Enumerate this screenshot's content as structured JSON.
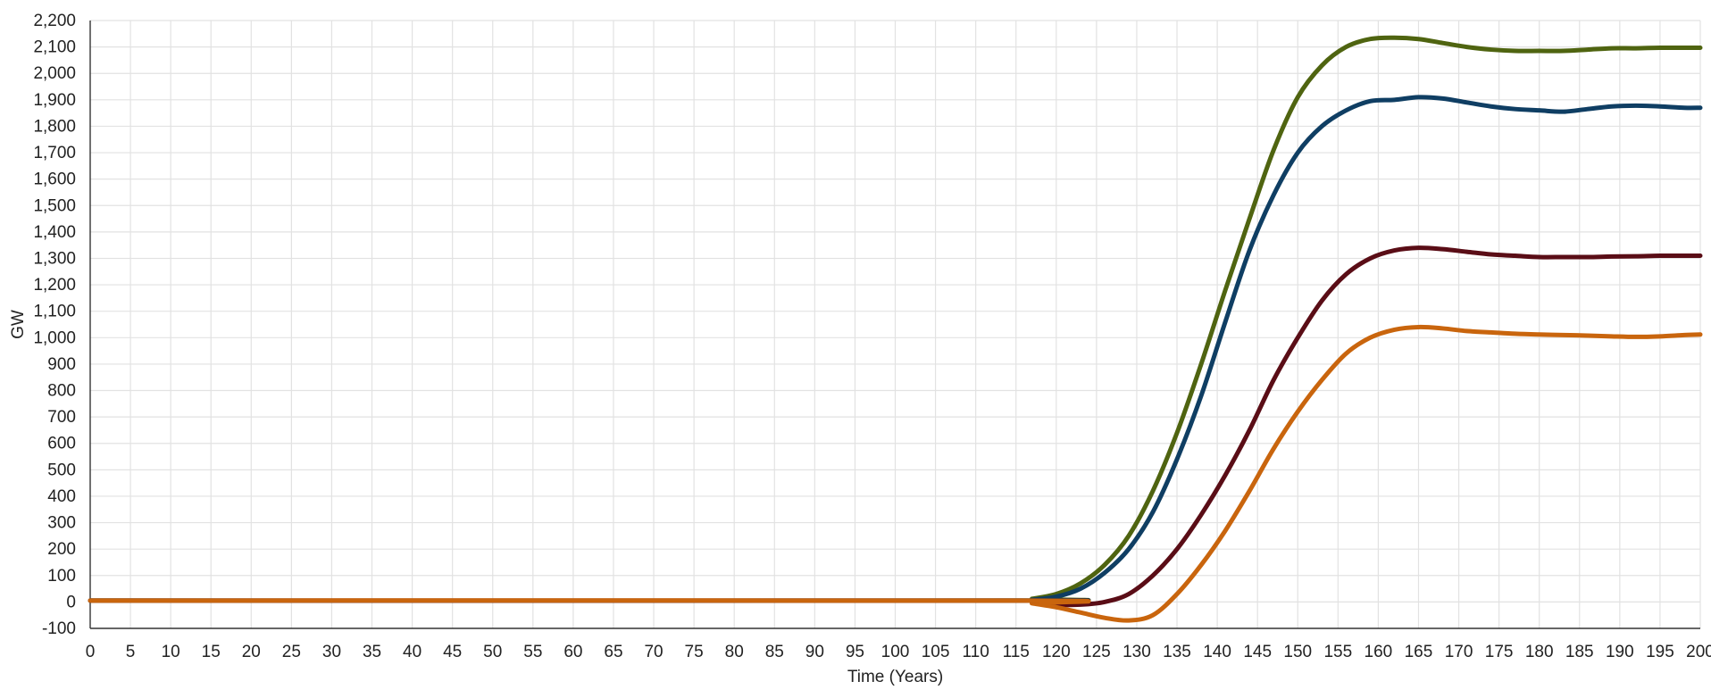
{
  "chart_data": {
    "type": "line",
    "title": "",
    "xlabel": "Time (Years)",
    "ylabel": "GW",
    "xlim": [
      0,
      200
    ],
    "ylim": [
      -100,
      2200
    ],
    "x_ticks": [
      0,
      5,
      10,
      15,
      20,
      25,
      30,
      35,
      40,
      45,
      50,
      55,
      60,
      65,
      70,
      75,
      80,
      85,
      90,
      95,
      100,
      105,
      110,
      115,
      120,
      125,
      130,
      135,
      140,
      145,
      150,
      155,
      160,
      165,
      170,
      175,
      180,
      185,
      190,
      195,
      200
    ],
    "x_tick_labels": [
      "0",
      "5",
      "10",
      "15",
      "20",
      "25",
      "30",
      "35",
      "40",
      "45",
      "50",
      "55",
      "60",
      "65",
      "70",
      "75",
      "80",
      "85",
      "90",
      "95",
      "100",
      "105",
      "110",
      "115",
      "120",
      "125",
      "130",
      "135",
      "140",
      "145",
      "150",
      "155",
      "160",
      "165",
      "170",
      "175",
      "180",
      "185",
      "190",
      "195",
      "200"
    ],
    "y_ticks": [
      -100,
      0,
      100,
      200,
      300,
      400,
      500,
      600,
      700,
      800,
      900,
      1000,
      1100,
      1200,
      1300,
      1400,
      1500,
      1600,
      1700,
      1800,
      1900,
      2000,
      2100,
      2200
    ],
    "y_tick_labels": [
      "-100",
      "0",
      "100",
      "200",
      "300",
      "400",
      "500",
      "600",
      "700",
      "800",
      "900",
      "1,000",
      "1,100",
      "1,200",
      "1,300",
      "1,400",
      "1,500",
      "1,600",
      "1,700",
      "1,800",
      "1,900",
      "2,000",
      "2,100",
      "2,200"
    ],
    "grid": true,
    "legend": "none",
    "x": [
      0,
      115,
      117,
      120,
      123,
      126,
      129,
      132,
      135,
      138,
      141,
      144,
      147,
      150,
      153,
      156,
      159,
      162,
      165,
      168,
      171,
      174,
      177,
      180,
      183,
      186,
      189,
      192,
      195,
      198,
      200
    ],
    "series": [
      {
        "color": "#4f6410",
        "values": [
          5,
          5,
          12,
          30,
          70,
          140,
          250,
          420,
          640,
          900,
          1180,
          1450,
          1710,
          1910,
          2030,
          2100,
          2130,
          2135,
          2130,
          2115,
          2100,
          2090,
          2085,
          2085,
          2085,
          2090,
          2095,
          2095,
          2097,
          2097,
          2097
        ]
      },
      {
        "color": "#0f3e63",
        "values": [
          5,
          5,
          8,
          20,
          50,
          110,
          200,
          340,
          540,
          780,
          1060,
          1330,
          1540,
          1700,
          1800,
          1860,
          1895,
          1900,
          1910,
          1905,
          1890,
          1875,
          1865,
          1860,
          1855,
          1865,
          1875,
          1878,
          1875,
          1870,
          1870
        ]
      },
      {
        "color": "#5a0d16",
        "values": [
          5,
          5,
          0,
          -10,
          -10,
          0,
          30,
          100,
          200,
          330,
          480,
          650,
          840,
          1000,
          1140,
          1240,
          1300,
          1330,
          1340,
          1335,
          1325,
          1315,
          1310,
          1305,
          1305,
          1305,
          1307,
          1308,
          1310,
          1310,
          1310
        ]
      },
      {
        "color": "#c9650d",
        "values": [
          5,
          5,
          -5,
          -20,
          -40,
          -60,
          -70,
          -50,
          30,
          140,
          270,
          420,
          580,
          720,
          840,
          940,
          1000,
          1030,
          1040,
          1035,
          1025,
          1020,
          1015,
          1012,
          1010,
          1008,
          1005,
          1003,
          1005,
          1010,
          1012
        ]
      }
    ]
  }
}
